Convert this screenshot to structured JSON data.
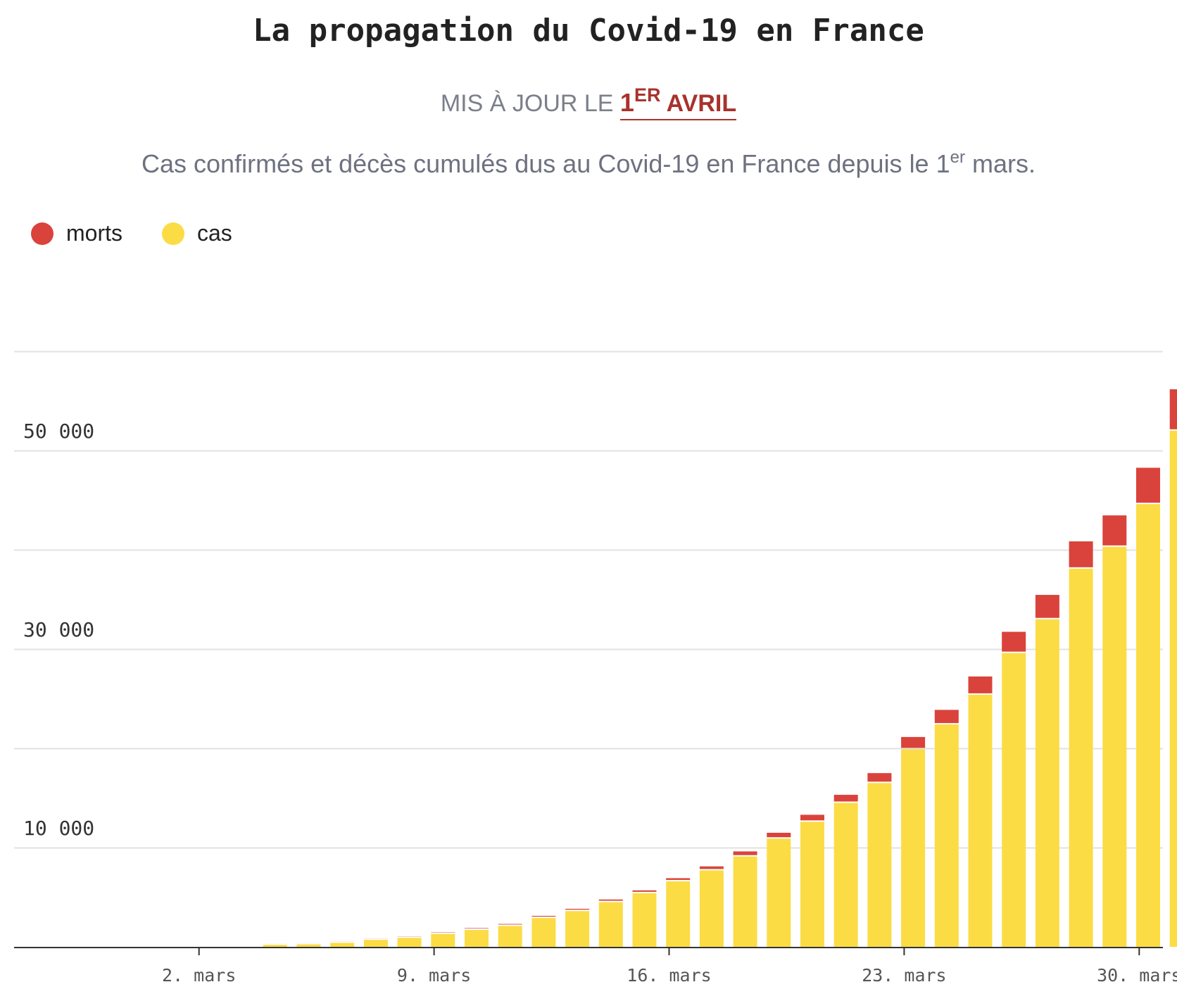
{
  "title": "La propagation du Covid-19 en France",
  "updated": {
    "prefix": "MIS À JOUR LE ",
    "day": "1",
    "suffix": "ER",
    "month": " AVRIL"
  },
  "subtitle": {
    "before": "Cas confirmés et décès cumulés dus au Covid-19 en France depuis le 1",
    "sup": "er",
    "after": " mars."
  },
  "legend": [
    {
      "label": "morts",
      "color": "#d9433b"
    },
    {
      "label": "cas",
      "color": "#fcdc45"
    }
  ],
  "chart_data": {
    "type": "bar",
    "stacked": true,
    "categories": [
      "1 mars",
      "2 mars",
      "3 mars",
      "4 mars",
      "5 mars",
      "6 mars",
      "7 mars",
      "8 mars",
      "9 mars",
      "10 mars",
      "11 mars",
      "12 mars",
      "13 mars",
      "14 mars",
      "15 mars",
      "16 mars",
      "17 mars",
      "18 mars",
      "19 mars",
      "20 mars",
      "21 mars",
      "22 mars",
      "23 mars",
      "24 mars",
      "25 mars",
      "26 mars",
      "27 mars",
      "28 mars",
      "29 mars",
      "30 mars",
      "31 mars",
      "1 avril"
    ],
    "series": [
      {
        "name": "cas",
        "color": "#fcdc45",
        "values": [
          0,
          0,
          0,
          0,
          200,
          250,
          400,
          700,
          900,
          1300,
          1700,
          2100,
          2900,
          3600,
          4500,
          5400,
          6600,
          7700,
          9100,
          10900,
          12600,
          14500,
          16500,
          19900,
          22400,
          25400,
          29600,
          33000,
          38100,
          40300,
          44600,
          52000
        ]
      },
      {
        "name": "morts",
        "color": "#d9433b",
        "values": [
          0,
          0,
          0,
          0,
          4,
          5,
          7,
          11,
          20,
          33,
          48,
          61,
          79,
          91,
          127,
          148,
          175,
          264,
          372,
          450,
          562,
          674,
          860,
          1100,
          1331,
          1696,
          1995,
          2314,
          2606,
          3024,
          3523,
          4032
        ]
      }
    ],
    "x_ticks": [
      "2. mars",
      "9. mars",
      "16. mars",
      "23. mars",
      "30. mars"
    ],
    "y_ticks": [
      "10 000",
      "30 000",
      "50 000"
    ],
    "ylim": [
      0,
      60000
    ],
    "grid": true,
    "legend_position": "top-left"
  }
}
